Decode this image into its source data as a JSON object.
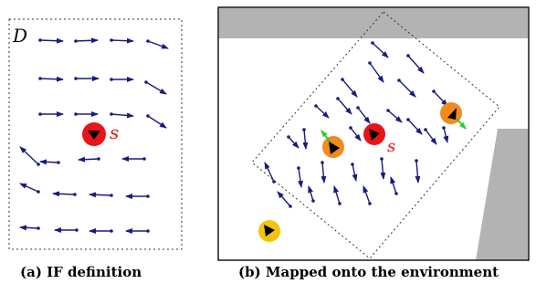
{
  "panel_a": {
    "domain_label": "D",
    "source_label": "s",
    "caption": "(a) IF definition"
  },
  "panel_b": {
    "source_label": "s",
    "caption": "(b) Mapped onto the environment"
  },
  "colors": {
    "arrow": "#1a1a80",
    "source_red": "#e8141c",
    "agent_orange": "#f28a1e",
    "agent_yellow": "#f2c40a",
    "heading_green": "#2ecc2e",
    "obstacle_gray": "#b3b3b3"
  }
}
